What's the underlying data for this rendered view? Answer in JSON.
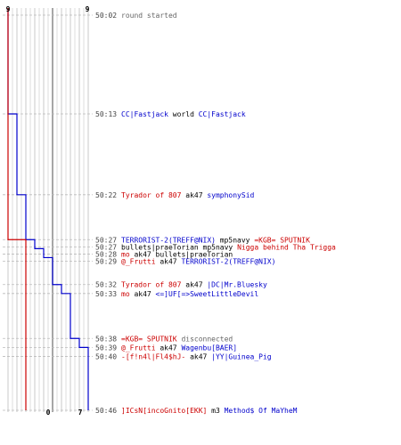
{
  "colors": {
    "blue": "#0000cc",
    "red": "#cc0000",
    "grey_text": "#666666",
    "black": "#000000",
    "grid_light": "#c8c8c8",
    "grid_dark": "#888888",
    "dash": "#bbbbbb"
  },
  "axis_labels": {
    "blue_top": "9",
    "red_top": "9",
    "blue_bottom": "0",
    "red_bottom": "7"
  },
  "chart_data": {
    "type": "line",
    "series": [
      {
        "team": "blue",
        "steps": [
          [
            0,
            9
          ],
          [
            11,
            8
          ],
          [
            20,
            7
          ],
          [
            25,
            6
          ],
          [
            26,
            5
          ],
          [
            27,
            4
          ],
          [
            30,
            3
          ],
          [
            31,
            2
          ],
          [
            36,
            1
          ],
          [
            37,
            0
          ]
        ]
      },
      {
        "team": "red",
        "steps": [
          [
            0,
            9
          ],
          [
            25,
            7
          ]
        ]
      }
    ],
    "ylim": [
      0,
      9
    ],
    "time_range": [
      "50:02",
      "50:46"
    ]
  },
  "events": [
    {
      "time": "50:02",
      "row": 0,
      "parts": [
        {
          "t": "round started",
          "c": "grey_text"
        }
      ]
    },
    {
      "time": "50:13",
      "row": 11,
      "parts": [
        {
          "t": "CC|Fastjack",
          "c": "blue"
        },
        {
          "t": " world ",
          "c": "black"
        },
        {
          "t": "CC|Fastjack",
          "c": "blue"
        }
      ]
    },
    {
      "time": "50:22",
      "row": 20,
      "parts": [
        {
          "t": "Tyrador of 807",
          "c": "red"
        },
        {
          "t": " ak47 ",
          "c": "black"
        },
        {
          "t": "symphonySid",
          "c": "blue"
        }
      ]
    },
    {
      "time": "50:27",
      "row": 25,
      "parts": [
        {
          "t": "TERRORIST-2(TREFF@NIX)",
          "c": "blue"
        },
        {
          "t": " mp5navy ",
          "c": "black"
        },
        {
          "t": "=KGB= SPUTNIK",
          "c": "red"
        }
      ]
    },
    {
      "time": "50:27",
      "row": 25.8,
      "parts": [
        {
          "t": "bullets|praeTorian",
          "c": "black"
        },
        {
          "t": " mp5navy ",
          "c": "black"
        },
        {
          "t": "Nigga behind Tha Trigga",
          "c": "red"
        }
      ]
    },
    {
      "time": "50:28",
      "row": 26.6,
      "parts": [
        {
          "t": "mo",
          "c": "red"
        },
        {
          "t": " ak47 ",
          "c": "black"
        },
        {
          "t": "bullets|praeTorian",
          "c": "black"
        }
      ]
    },
    {
      "time": "50:29",
      "row": 27.4,
      "parts": [
        {
          "t": "@_Frutti",
          "c": "red"
        },
        {
          "t": " ak47 ",
          "c": "black"
        },
        {
          "t": "TERRORIST-2(TREFF@NIX)",
          "c": "blue"
        }
      ]
    },
    {
      "time": "50:32",
      "row": 30,
      "parts": [
        {
          "t": "Tyrador of 807",
          "c": "red"
        },
        {
          "t": " ak47 ",
          "c": "black"
        },
        {
          "t": "|DC|Mr.Bluesky",
          "c": "blue"
        }
      ]
    },
    {
      "time": "50:33",
      "row": 31,
      "parts": [
        {
          "t": "mo",
          "c": "red"
        },
        {
          "t": " ak47 ",
          "c": "black"
        },
        {
          "t": "<=]UF[=>SweetLittleDevil",
          "c": "blue"
        }
      ]
    },
    {
      "time": "50:38",
      "row": 36,
      "parts": [
        {
          "t": "=KGB= SPUTNIK",
          "c": "red"
        },
        {
          "t": " disconnected",
          "c": "grey_text"
        }
      ]
    },
    {
      "time": "50:39",
      "row": 37,
      "parts": [
        {
          "t": "@_Frutti",
          "c": "red"
        },
        {
          "t": " ak47 ",
          "c": "black"
        },
        {
          "t": "Wagenbu[BAER]",
          "c": "blue"
        }
      ]
    },
    {
      "time": "50:40",
      "row": 38,
      "parts": [
        {
          "t": "-[f!n4l|Fl4$hJ-",
          "c": "red"
        },
        {
          "t": " ak47 ",
          "c": "black"
        },
        {
          "t": "|YY|Guinea_Pig",
          "c": "blue"
        }
      ]
    },
    {
      "time": "50:46",
      "row": 44,
      "parts": [
        {
          "t": "]ICsN[incoGnito[EKK]",
          "c": "red"
        },
        {
          "t": " m3 ",
          "c": "black"
        },
        {
          "t": "Method$ Of MaYheM",
          "c": "blue"
        }
      ]
    }
  ]
}
